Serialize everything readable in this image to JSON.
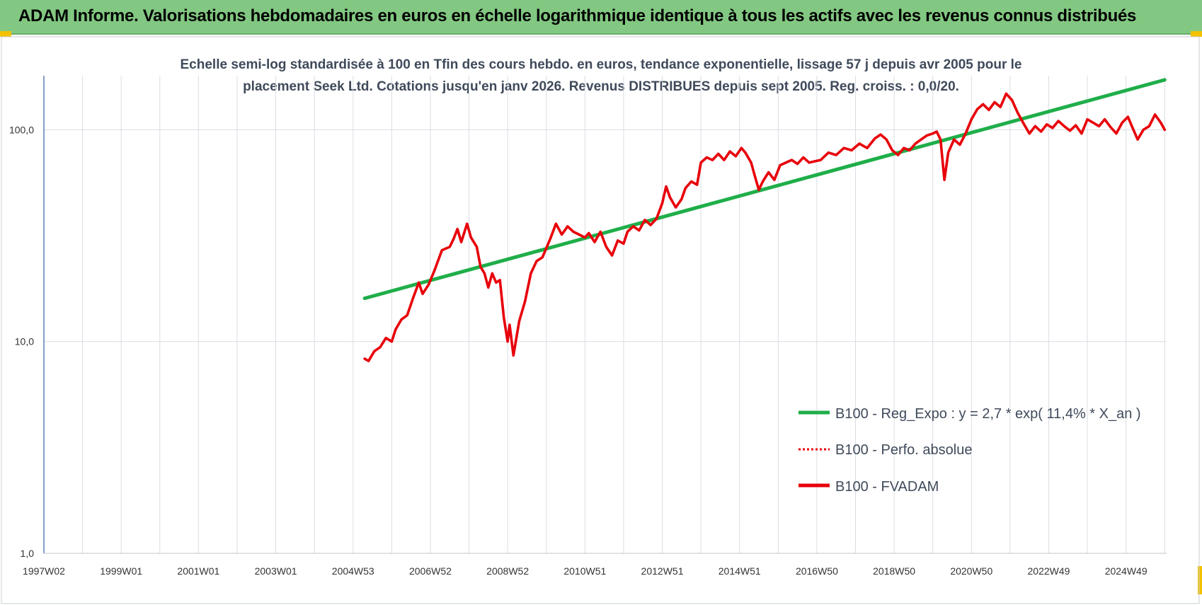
{
  "header": {
    "title": "ADAM Informe. Valorisations hebdomadaires en euros en échelle logarithmique identique à tous les actifs avec les revenus connus distribués"
  },
  "colors": {
    "header_bg": "#82c882",
    "trend": "#1fae4a",
    "price": "#e8000b",
    "grid": "#d9dde3",
    "axis": "#5b7fb5",
    "accent": "#f2c200"
  },
  "chart_data": {
    "type": "line",
    "title_lines": [
      "Echelle semi-log standardisée à 100 en Tfin des cours hebdo. en euros, tendance exponentielle, lissage 57 j depuis avr 2005 pour le",
      "placement Seek Ltd. Cotations jusqu'en janv 2026. Revenus DISTRIBUES depuis sept 2005. Reg. croiss. : 0,0/20."
    ],
    "y_scale": "log",
    "ylim": [
      1,
      180
    ],
    "y_ticks": [
      {
        "value": 1,
        "label": "1,0"
      },
      {
        "value": 10,
        "label": "10,0"
      },
      {
        "value": 100,
        "label": "100,0"
      }
    ],
    "xlim": [
      1997.0,
      2026.05
    ],
    "x_ticks": [
      {
        "value": 1997.0,
        "label": "1997W02"
      },
      {
        "value": 1999.0,
        "label": "1999W01"
      },
      {
        "value": 2001.0,
        "label": "2001W01"
      },
      {
        "value": 2003.0,
        "label": "2003W01"
      },
      {
        "value": 2005.0,
        "label": "2004W53"
      },
      {
        "value": 2007.0,
        "label": "2006W52"
      },
      {
        "value": 2009.0,
        "label": "2008W52"
      },
      {
        "value": 2011.0,
        "label": "2010W51"
      },
      {
        "value": 2013.0,
        "label": "2012W51"
      },
      {
        "value": 2015.0,
        "label": "2014W51"
      },
      {
        "value": 2017.0,
        "label": "2016W50"
      },
      {
        "value": 2019.0,
        "label": "2018W50"
      },
      {
        "value": 2021.0,
        "label": "2020W50"
      },
      {
        "value": 2023.0,
        "label": "2022W49"
      },
      {
        "value": 2025.0,
        "label": "2024W49"
      }
    ],
    "grid": true,
    "legend_position": "bottom-right",
    "series": [
      {
        "name": "B100 - Reg_Expo : y = 2,7 * exp( 11,4% *  X_an )",
        "color": "#1fae4a",
        "style": "solid",
        "points": [
          [
            2005.3,
            16.0
          ],
          [
            2026.0,
            172.0
          ]
        ]
      },
      {
        "name": "B100 - Perfo. absolue",
        "color": "#e8000b",
        "style": "dotted",
        "points": []
      },
      {
        "name": "B100 - FVADAM",
        "color": "#e8000b",
        "style": "solid",
        "points": [
          [
            2005.3,
            8.3
          ],
          [
            2005.4,
            8.1
          ],
          [
            2005.55,
            9.0
          ],
          [
            2005.7,
            9.4
          ],
          [
            2005.85,
            10.4
          ],
          [
            2006.0,
            10.0
          ],
          [
            2006.1,
            11.4
          ],
          [
            2006.25,
            12.7
          ],
          [
            2006.4,
            13.3
          ],
          [
            2006.55,
            16.0
          ],
          [
            2006.7,
            19.0
          ],
          [
            2006.8,
            16.8
          ],
          [
            2006.95,
            18.5
          ],
          [
            2007.1,
            21.5
          ],
          [
            2007.3,
            27.0
          ],
          [
            2007.5,
            28.0
          ],
          [
            2007.6,
            30.5
          ],
          [
            2007.7,
            34.0
          ],
          [
            2007.8,
            29.5
          ],
          [
            2007.95,
            36.0
          ],
          [
            2008.05,
            31.0
          ],
          [
            2008.2,
            28.0
          ],
          [
            2008.3,
            22.5
          ],
          [
            2008.4,
            21.0
          ],
          [
            2008.5,
            18.0
          ],
          [
            2008.6,
            21.0
          ],
          [
            2008.7,
            19.0
          ],
          [
            2008.8,
            19.5
          ],
          [
            2008.9,
            13.0
          ],
          [
            2009.0,
            10.0
          ],
          [
            2009.05,
            12.0
          ],
          [
            2009.15,
            8.6
          ],
          [
            2009.3,
            12.5
          ],
          [
            2009.45,
            15.5
          ],
          [
            2009.6,
            21.0
          ],
          [
            2009.75,
            24.0
          ],
          [
            2009.9,
            25.0
          ],
          [
            2010.1,
            30.5
          ],
          [
            2010.25,
            36.0
          ],
          [
            2010.4,
            32.0
          ],
          [
            2010.55,
            35.0
          ],
          [
            2010.7,
            33.0
          ],
          [
            2010.85,
            32.0
          ],
          [
            2011.0,
            31.0
          ],
          [
            2011.1,
            32.5
          ],
          [
            2011.25,
            29.5
          ],
          [
            2011.4,
            33.0
          ],
          [
            2011.55,
            28.0
          ],
          [
            2011.7,
            25.5
          ],
          [
            2011.85,
            30.0
          ],
          [
            2012.0,
            29.0
          ],
          [
            2012.1,
            33.0
          ],
          [
            2012.25,
            35.0
          ],
          [
            2012.4,
            33.5
          ],
          [
            2012.55,
            37.5
          ],
          [
            2012.7,
            35.5
          ],
          [
            2012.85,
            38.0
          ],
          [
            2013.0,
            45.0
          ],
          [
            2013.1,
            54.0
          ],
          [
            2013.2,
            48.0
          ],
          [
            2013.35,
            43.0
          ],
          [
            2013.5,
            47.0
          ],
          [
            2013.6,
            53.0
          ],
          [
            2013.75,
            57.0
          ],
          [
            2013.9,
            55.0
          ],
          [
            2014.0,
            70.0
          ],
          [
            2014.15,
            74.0
          ],
          [
            2014.3,
            72.0
          ],
          [
            2014.45,
            77.0
          ],
          [
            2014.6,
            72.0
          ],
          [
            2014.75,
            79.0
          ],
          [
            2014.9,
            75.0
          ],
          [
            2015.05,
            82.0
          ],
          [
            2015.15,
            78.0
          ],
          [
            2015.3,
            70.0
          ],
          [
            2015.4,
            60.0
          ],
          [
            2015.5,
            52.0
          ],
          [
            2015.6,
            57.0
          ],
          [
            2015.75,
            63.0
          ],
          [
            2015.9,
            58.0
          ],
          [
            2016.05,
            68.0
          ],
          [
            2016.2,
            70.0
          ],
          [
            2016.35,
            72.0
          ],
          [
            2016.5,
            69.0
          ],
          [
            2016.65,
            74.0
          ],
          [
            2016.8,
            70.0
          ],
          [
            2016.95,
            71.0
          ],
          [
            2017.1,
            72.0
          ],
          [
            2017.3,
            78.0
          ],
          [
            2017.5,
            76.0
          ],
          [
            2017.7,
            82.0
          ],
          [
            2017.9,
            80.0
          ],
          [
            2018.1,
            86.0
          ],
          [
            2018.3,
            82.0
          ],
          [
            2018.5,
            91.0
          ],
          [
            2018.65,
            95.0
          ],
          [
            2018.8,
            90.0
          ],
          [
            2018.95,
            80.0
          ],
          [
            2019.1,
            76.0
          ],
          [
            2019.25,
            82.0
          ],
          [
            2019.4,
            80.0
          ],
          [
            2019.55,
            86.0
          ],
          [
            2019.7,
            90.0
          ],
          [
            2019.85,
            94.0
          ],
          [
            2020.0,
            96.0
          ],
          [
            2020.1,
            98.0
          ],
          [
            2020.2,
            90.0
          ],
          [
            2020.3,
            58.0
          ],
          [
            2020.4,
            78.0
          ],
          [
            2020.55,
            90.0
          ],
          [
            2020.7,
            85.0
          ],
          [
            2020.85,
            96.0
          ],
          [
            2021.0,
            112.0
          ],
          [
            2021.15,
            125.0
          ],
          [
            2021.3,
            132.0
          ],
          [
            2021.45,
            124.0
          ],
          [
            2021.6,
            135.0
          ],
          [
            2021.75,
            128.0
          ],
          [
            2021.9,
            148.0
          ],
          [
            2022.05,
            138.0
          ],
          [
            2022.2,
            120.0
          ],
          [
            2022.35,
            107.0
          ],
          [
            2022.5,
            96.0
          ],
          [
            2022.65,
            104.0
          ],
          [
            2022.8,
            98.0
          ],
          [
            2022.95,
            106.0
          ],
          [
            2023.1,
            102.0
          ],
          [
            2023.25,
            110.0
          ],
          [
            2023.4,
            104.0
          ],
          [
            2023.55,
            99.0
          ],
          [
            2023.7,
            105.0
          ],
          [
            2023.85,
            96.0
          ],
          [
            2024.0,
            112.0
          ],
          [
            2024.15,
            108.0
          ],
          [
            2024.3,
            104.0
          ],
          [
            2024.45,
            112.0
          ],
          [
            2024.6,
            103.0
          ],
          [
            2024.75,
            96.0
          ],
          [
            2024.9,
            108.0
          ],
          [
            2025.05,
            115.0
          ],
          [
            2025.15,
            104.0
          ],
          [
            2025.3,
            90.0
          ],
          [
            2025.45,
            100.0
          ],
          [
            2025.6,
            104.0
          ],
          [
            2025.75,
            118.0
          ],
          [
            2025.9,
            108.0
          ],
          [
            2026.0,
            100.0
          ]
        ]
      }
    ]
  }
}
